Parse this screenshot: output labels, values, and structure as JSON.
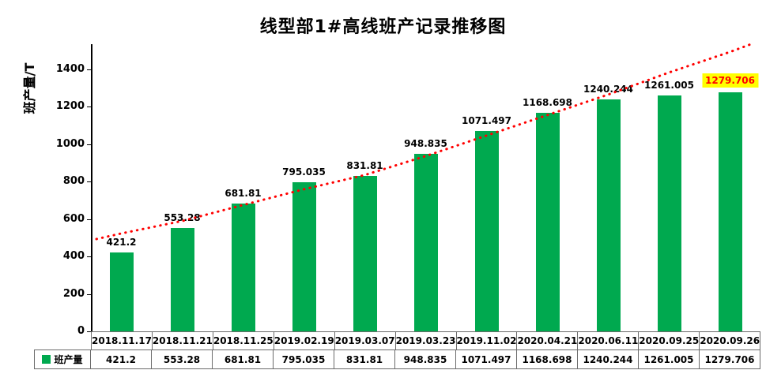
{
  "title": "线型部1#高线班产记录推移图",
  "y_axis_label": "班产量/T",
  "legend_label": "班产量",
  "colors": {
    "bar": "#00A94F",
    "trend": "#FF0000",
    "highlight_bg": "#FFFF00",
    "highlight_text": "#FF0000",
    "axis": "#000000",
    "table_border": "#6b6b6b"
  },
  "chart_data": {
    "type": "bar",
    "title": "线型部1#高线班产记录推移图",
    "xlabel": "",
    "ylabel": "班产量/T",
    "categories": [
      "2018.11.17",
      "2018.11.21",
      "2018.11.25",
      "2019.02.19",
      "2019.03.07",
      "2019.03.23",
      "2019.11.02",
      "2020.04.21",
      "2020.06.11",
      "2020.09.25",
      "2020.09.26"
    ],
    "series": [
      {
        "name": "班产量",
        "values": [
          "421.2",
          "553.28",
          "681.81",
          "795.035",
          "831.81",
          "948.835",
          "1071.497",
          "1168.698",
          "1240.244",
          "1261.005",
          "1279.706"
        ]
      }
    ],
    "ylim": [
      0,
      1500
    ],
    "yticks": [
      0,
      200,
      400,
      600,
      800,
      1000,
      1200,
      1400
    ],
    "grid": false,
    "legend_position": "table-left",
    "trendline": {
      "style": "dotted",
      "color": "#FF0000",
      "shape": "rising-exponential"
    },
    "highlight_last_value": true,
    "data_table_shown": true
  }
}
